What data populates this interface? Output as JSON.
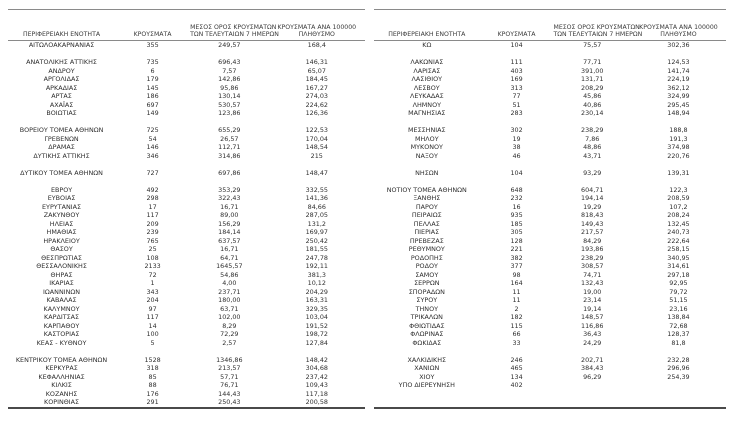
{
  "columns": {
    "region": "ΠΕΡΙΦΕΡΕΙΑΚΗ ΕΝΟΤΗΤΑ",
    "cases": "ΚΡΟΥΣΜΑΤΑ",
    "avg7_line1": "ΜΕΣΟΣ ΟΡΟΣ ΚΡΟΥΣΜΑΤΩΝ",
    "avg7_line2": "ΤΩΝ ΤΕΛΕΥΤΑΙΩΝ 7 ΗΜΕΡΩΝ",
    "per100k_line1": "ΚΡΟΥΣΜΑΤΑ ΑΝΑ 100000",
    "per100k_line2": "ΠΛΗΘΥΣΜΟ"
  },
  "left_table": {
    "rows": [
      [
        "ΑΙΤΩΛΟΑΚΑΡΝΑΝΙΑΣ",
        "355",
        "249,57",
        "168,4"
      ],
      null,
      [
        "ΑΝΑΤΟΛΙΚΗΣ ΑΤΤΙΚΗΣ",
        "735",
        "696,43",
        "146,31"
      ],
      [
        "ΑΝΔΡΟΥ",
        "6",
        "7,57",
        "65,07"
      ],
      [
        "ΑΡΓΟΛΙΔΑΣ",
        "179",
        "142,86",
        "184,45"
      ],
      [
        "ΑΡΚΑΔΙΑΣ",
        "145",
        "95,86",
        "167,27"
      ],
      [
        "ΑΡΤΑΣ",
        "186",
        "130,14",
        "274,03"
      ],
      [
        "ΑΧΑΪΑΣ",
        "697",
        "530,57",
        "224,62"
      ],
      [
        "ΒΟΙΩΤΙΑΣ",
        "149",
        "123,86",
        "126,36"
      ],
      null,
      [
        "ΒΟΡΕΙΟΥ ΤΟΜΕΑ ΑΘΗΝΩΝ",
        "725",
        "655,29",
        "122,53"
      ],
      [
        "ΓΡΕΒΕΝΩΝ",
        "54",
        "26,57",
        "170,04"
      ],
      [
        "ΔΡΑΜΑΣ",
        "146",
        "112,71",
        "148,54"
      ],
      [
        "ΔΥΤΙΚΗΣ ΑΤΤΙΚΗΣ",
        "346",
        "314,86",
        "215"
      ],
      null,
      [
        "ΔΥΤΙΚΟΥ ΤΟΜΕΑ ΑΘΗΝΩΝ",
        "727",
        "697,86",
        "148,47"
      ],
      null,
      [
        "ΕΒΡΟΥ",
        "492",
        "353,29",
        "332,55"
      ],
      [
        "ΕΥΒΟΙΑΣ",
        "298",
        "322,43",
        "141,36"
      ],
      [
        "ΕΥΡΥΤΑΝΙΑΣ",
        "17",
        "16,71",
        "84,66"
      ],
      [
        "ΖΑΚΥΝΘΟΥ",
        "117",
        "89,00",
        "287,05"
      ],
      [
        "ΗΛΕΙΑΣ",
        "209",
        "156,29",
        "131,2"
      ],
      [
        "ΗΜΑΘΙΑΣ",
        "239",
        "184,14",
        "169,97"
      ],
      [
        "ΗΡΑΚΛΕΙΟΥ",
        "765",
        "637,57",
        "250,42"
      ],
      [
        "ΘΑΣΟΥ",
        "25",
        "16,71",
        "181,55"
      ],
      [
        "ΘΕΣΠΡΩΤΙΑΣ",
        "108",
        "64,71",
        "247,78"
      ],
      [
        "ΘΕΣΣΑΛΟΝΙΚΗΣ",
        "2133",
        "1645,57",
        "192,11"
      ],
      [
        "ΘΗΡΑΣ",
        "72",
        "54,86",
        "381,3"
      ],
      [
        "ΙΚΑΡΙΑΣ",
        "1",
        "4,00",
        "10,12"
      ],
      [
        "ΙΩΑΝΝΙΝΩΝ",
        "343",
        "237,71",
        "204,29"
      ],
      [
        "ΚΑΒΑΛΑΣ",
        "204",
        "180,00",
        "163,31"
      ],
      [
        "ΚΑΛΥΜΝΟΥ",
        "97",
        "63,71",
        "329,35"
      ],
      [
        "ΚΑΡΔΙΤΣΑΣ",
        "117",
        "102,00",
        "103,04"
      ],
      [
        "ΚΑΡΠΑΘΟΥ",
        "14",
        "8,29",
        "191,52"
      ],
      [
        "ΚΑΣΤΟΡΙΑΣ",
        "100",
        "72,29",
        "198,72"
      ],
      [
        "ΚΕΑΣ - ΚΥΘΝΟΥ",
        "5",
        "2,57",
        "127,84"
      ],
      null,
      [
        "ΚΕΝΤΡΙΚΟΥ ΤΟΜΕΑ ΑΘΗΝΩΝ",
        "1528",
        "1346,86",
        "148,42"
      ],
      [
        "ΚΕΡΚΥΡΑΣ",
        "318",
        "213,57",
        "304,68"
      ],
      [
        "ΚΕΦΑΛΛΗΝΙΑΣ",
        "85",
        "57,71",
        "237,42"
      ],
      [
        "ΚΙΛΚΙΣ",
        "88",
        "76,71",
        "109,43"
      ],
      [
        "ΚΟΖΑΝΗΣ",
        "176",
        "144,43",
        "117,18"
      ],
      [
        "ΚΟΡΙΝΘΙΑΣ",
        "291",
        "250,43",
        "200,58"
      ]
    ]
  },
  "right_table": {
    "rows": [
      [
        "ΚΩ",
        "104",
        "75,57",
        "302,36"
      ],
      null,
      [
        "ΛΑΚΩΝΙΑΣ",
        "111",
        "77,71",
        "124,53"
      ],
      [
        "ΛΑΡΙΣΑΣ",
        "403",
        "391,00",
        "141,74"
      ],
      [
        "ΛΑΣΙΘΙΟΥ",
        "169",
        "131,71",
        "224,19"
      ],
      [
        "ΛΕΣΒΟΥ",
        "313",
        "208,29",
        "362,12"
      ],
      [
        "ΛΕΥΚΑΔΑΣ",
        "77",
        "45,86",
        "324,99"
      ],
      [
        "ΛΗΜΝΟΥ",
        "51",
        "40,86",
        "295,45"
      ],
      [
        "ΜΑΓΝΗΣΙΑΣ",
        "283",
        "230,14",
        "148,94"
      ],
      null,
      [
        "ΜΕΣΣΗΝΙΑΣ",
        "302",
        "238,29",
        "188,8"
      ],
      [
        "ΜΗΛΟΥ",
        "19",
        "7,86",
        "191,3"
      ],
      [
        "ΜΥΚΟΝΟΥ",
        "38",
        "48,86",
        "374,98"
      ],
      [
        "ΝΑΞΟΥ",
        "46",
        "43,71",
        "220,76"
      ],
      null,
      [
        "ΝΗΣΩΝ",
        "104",
        "93,29",
        "139,31"
      ],
      null,
      [
        "ΝΟΤΙΟΥ ΤΟΜΕΑ ΑΘΗΝΩΝ",
        "648",
        "604,71",
        "122,3"
      ],
      [
        "ΞΑΝΘΗΣ",
        "232",
        "194,14",
        "208,59"
      ],
      [
        "ΠΑΡΟΥ",
        "16",
        "19,29",
        "107,2"
      ],
      [
        "ΠΕΙΡΑΙΩΣ",
        "935",
        "818,43",
        "208,24"
      ],
      [
        "ΠΕΛΛΑΣ",
        "185",
        "149,43",
        "132,45"
      ],
      [
        "ΠΙΕΡΙΑΣ",
        "305",
        "217,57",
        "240,73"
      ],
      [
        "ΠΡΕΒΕΖΑΣ",
        "128",
        "84,29",
        "222,64"
      ],
      [
        "ΡΕΘΥΜΝΟΥ",
        "221",
        "193,86",
        "258,15"
      ],
      [
        "ΡΟΔΟΠΗΣ",
        "382",
        "238,29",
        "340,95"
      ],
      [
        "ΡΟΔΟΥ",
        "377",
        "308,57",
        "314,61"
      ],
      [
        "ΣΑΜΟΥ",
        "98",
        "74,71",
        "297,18"
      ],
      [
        "ΣΕΡΡΩΝ",
        "164",
        "132,43",
        "92,95"
      ],
      [
        "ΣΠΟΡΑΔΩΝ",
        "11",
        "19,00",
        "79,72"
      ],
      [
        "ΣΥΡΟΥ",
        "11",
        "23,14",
        "51,15"
      ],
      [
        "ΤΗΝΟΥ",
        "2",
        "19,14",
        "23,16"
      ],
      [
        "ΤΡΙΚΑΛΩΝ",
        "182",
        "148,57",
        "138,84"
      ],
      [
        "ΦΘΙΩΤΙΔΑΣ",
        "115",
        "116,86",
        "72,68"
      ],
      [
        "ΦΛΩΡΙΝΑΣ",
        "66",
        "36,43",
        "128,37"
      ],
      [
        "ΦΩΚΙΔΑΣ",
        "33",
        "24,29",
        "81,8"
      ],
      null,
      [
        "ΧΑΛΚΙΔΙΚΗΣ",
        "246",
        "202,71",
        "232,28"
      ],
      [
        "ΧΑΝΙΩΝ",
        "465",
        "384,43",
        "296,96"
      ],
      [
        "ΧΙΟΥ",
        "134",
        "96,29",
        "254,39"
      ],
      [
        "ΥΠΟ ΔΙΕΡΕΥΝΗΣΗ",
        "402",
        "",
        ""
      ]
    ]
  }
}
